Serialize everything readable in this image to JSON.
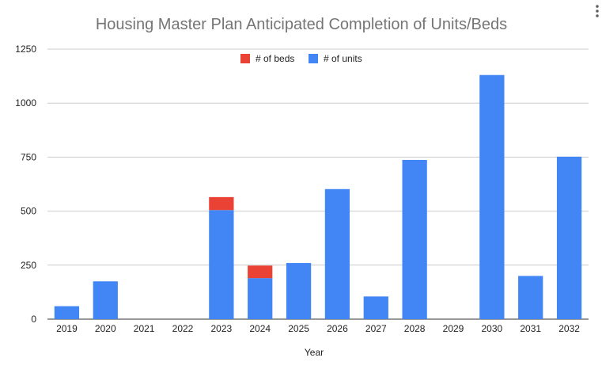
{
  "chart_data": {
    "type": "bar",
    "stacked": true,
    "title": "Housing Master Plan Anticipated Completion of Units/Beds",
    "xlabel": "Year",
    "ylabel": "",
    "categories": [
      "2019",
      "2020",
      "2021",
      "2022",
      "2023",
      "2024",
      "2025",
      "2026",
      "2027",
      "2028",
      "2029",
      "2030",
      "2031",
      "2032"
    ],
    "series": [
      {
        "name": "# of units",
        "color": "#4285f4",
        "values": [
          60,
          175,
          0,
          0,
          505,
          190,
          260,
          602,
          105,
          737,
          0,
          1130,
          200,
          752
        ]
      },
      {
        "name": "# of beds",
        "color": "#ea4335",
        "values": [
          0,
          0,
          0,
          0,
          60,
          58,
          0,
          0,
          0,
          0,
          0,
          0,
          0,
          0
        ]
      }
    ],
    "legend_order": [
      "# of beds",
      "# of units"
    ],
    "legend_position": "top",
    "ylim": [
      0,
      1250
    ],
    "yticks": [
      "0",
      "250",
      "500",
      "750",
      "1000",
      "1250"
    ],
    "grid": true
  },
  "menu": {
    "icon": "more-vertical-icon"
  }
}
